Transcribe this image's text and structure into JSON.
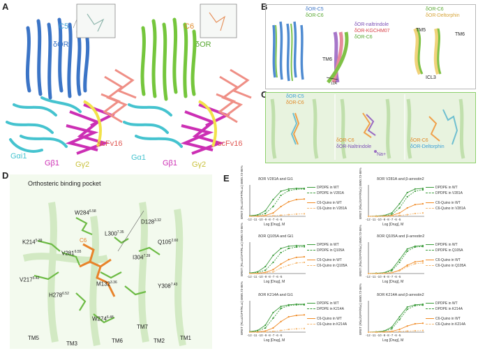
{
  "panels": {
    "A": {
      "letter": "A",
      "left": {
        "ligand": "C5",
        "receptor": "δOR",
        "galpha": "Gαi1",
        "gbeta": "Gβ1",
        "ggamma": "Gγ2",
        "scfv": "scFv16"
      },
      "right": {
        "ligand": "C6",
        "receptor": "δOR",
        "galpha": "Gα1",
        "gbeta": "Gβ1",
        "ggamma": "Gγ2",
        "scfv": "scFv16"
      }
    },
    "B": {
      "letter": "B",
      "top_left": [
        "δOR-C5",
        "δOR-C6"
      ],
      "overlay": [
        "δOR-naltrindole",
        "δOR-KGCHM07",
        "δOR-C6"
      ],
      "tm6": "TM6",
      "distance": "12Å",
      "right_legend": [
        "δOR-C6",
        "δOR-Deltorphin"
      ],
      "tm5": "TM5",
      "tm6b": "TM6",
      "icl3": "ICL3"
    },
    "C": {
      "letter": "C",
      "left_legend": [
        "δOR-C5",
        "δOR-C6"
      ],
      "mid_legend": [
        "δOR-C6",
        "δOR-Naltrindole"
      ],
      "mid_na": "Na+",
      "right_legend": [
        "δOR-C6",
        "δOR-Deltorphin"
      ]
    },
    "D": {
      "letter": "D",
      "title": "Orthosteric binding pocket",
      "ligand": "C6",
      "residues": [
        {
          "name": "W284",
          "sup": "6.58"
        },
        {
          "name": "L300",
          "sup": "7.35"
        },
        {
          "name": "D128",
          "sup": "3.32"
        },
        {
          "name": "K214",
          "sup": "5.39"
        },
        {
          "name": "V281",
          "sup": "6.55"
        },
        {
          "name": "Q105",
          "sup": "2.60"
        },
        {
          "name": "I304",
          "sup": "7.39"
        },
        {
          "name": "V217",
          "sup": "5.42"
        },
        {
          "name": "M132",
          "sup": "3.36"
        },
        {
          "name": "Y308",
          "sup": "7.43"
        },
        {
          "name": "H278",
          "sup": "6.52"
        },
        {
          "name": "W274",
          "sup": "6.48"
        }
      ],
      "helices": [
        "TM7",
        "TM5",
        "TM3",
        "TM6",
        "TM2",
        "TM1"
      ]
    },
    "E": {
      "letter": "E"
    }
  },
  "chart_data": [
    {
      "type": "line",
      "title": "δOR V281A and Gi1",
      "ylabel": "BRET (RLuc/GFP/RLuc) BW0.73-86%",
      "xlabel": "Log [Drug], M",
      "x_ticks": [
        "-12",
        "-11",
        "-10",
        "-9",
        "-8",
        "-7",
        "-6",
        "-5"
      ],
      "ylim": [
        0,
        1.1
      ],
      "x": [
        -12,
        -11,
        -10,
        -9,
        -8,
        -7,
        -6,
        -5
      ],
      "series": [
        {
          "name": "DPDPE in WT",
          "values": [
            0.02,
            0.05,
            0.2,
            0.6,
            0.9,
            0.98,
            1.0,
            1.0
          ]
        },
        {
          "name": "DPDPE in V281A",
          "values": [
            0.01,
            0.03,
            0.1,
            0.35,
            0.75,
            0.92,
            0.97,
            0.98
          ]
        },
        {
          "name": "C6-Quino in WT",
          "values": [
            0.0,
            0.01,
            0.03,
            0.12,
            0.35,
            0.52,
            0.6,
            0.62
          ]
        },
        {
          "name": "C6-Quino in V281A",
          "values": [
            0.0,
            0.0,
            0.01,
            0.02,
            0.04,
            0.06,
            0.08,
            0.09
          ]
        }
      ]
    },
    {
      "type": "line",
      "title": "δOR V281A and β-arrestin2",
      "ylabel": "BRET (Rluc/GFP/Rluc) BW0.73-86%",
      "xlabel": "Log [Drug], M",
      "x_ticks": [
        "-12",
        "-11",
        "-10",
        "-9",
        "-8",
        "-7",
        "-6",
        "-5"
      ],
      "ylim": [
        0,
        1.1
      ],
      "x": [
        -12,
        -11,
        -10,
        -9,
        -8,
        -7,
        -6,
        -5
      ],
      "series": [
        {
          "name": "DPDPE in WT",
          "values": [
            0.0,
            0.01,
            0.03,
            0.12,
            0.45,
            0.85,
            0.98,
            1.0
          ]
        },
        {
          "name": "DPDPE in V281A",
          "values": [
            0.0,
            0.0,
            0.02,
            0.06,
            0.3,
            0.7,
            0.9,
            0.95
          ]
        },
        {
          "name": "C6-Quino in WT",
          "values": [
            0.0,
            0.0,
            0.01,
            0.03,
            0.12,
            0.3,
            0.42,
            0.45
          ]
        },
        {
          "name": "C6-Quino in V281A",
          "values": [
            0.0,
            0.0,
            0.0,
            0.01,
            0.03,
            0.06,
            0.1,
            0.12
          ]
        }
      ]
    },
    {
      "type": "line",
      "title": "δOR Q105A and Gi1",
      "ylabel": "BRET (RLuc/GFP/RLuc) BW0.73-86%",
      "xlabel": "Log [Drug], M",
      "x_ticks": [
        "-12",
        "-11",
        "-10",
        "-9",
        "-8",
        "-7",
        "-6",
        "-5"
      ],
      "ylim": [
        0,
        1.1
      ],
      "x": [
        -12,
        -11,
        -10,
        -9,
        -8,
        -7,
        -6,
        -5
      ],
      "series": [
        {
          "name": "DPDPE in WT",
          "values": [
            0.02,
            0.06,
            0.25,
            0.65,
            0.9,
            0.98,
            1.0,
            1.0
          ]
        },
        {
          "name": "DPDPE in Q105A",
          "values": [
            0.01,
            0.03,
            0.12,
            0.4,
            0.75,
            0.9,
            0.95,
            0.96
          ]
        },
        {
          "name": "C6-Quino in WT",
          "values": [
            0.0,
            0.01,
            0.04,
            0.14,
            0.34,
            0.5,
            0.58,
            0.6
          ]
        },
        {
          "name": "C6-Quino in Q105A",
          "values": [
            0.0,
            0.0,
            0.02,
            0.06,
            0.2,
            0.3,
            0.38,
            0.4
          ]
        }
      ]
    },
    {
      "type": "line",
      "title": "δOR Q105A and β-arrestin2",
      "ylabel": "BRET (Rluc/GFP/Rluc) BW0.73-86%",
      "xlabel": "Log [Drug], M",
      "x_ticks": [
        "-12",
        "-11",
        "-10",
        "-9",
        "-8",
        "-7",
        "-6",
        "-5"
      ],
      "ylim": [
        0,
        1.1
      ],
      "x": [
        -12,
        -11,
        -10,
        -9,
        -8,
        -7,
        -6,
        -5
      ],
      "series": [
        {
          "name": "DPDPE in WT",
          "values": [
            0.0,
            0.01,
            0.03,
            0.14,
            0.5,
            0.88,
            0.98,
            1.0
          ]
        },
        {
          "name": "DPDPE in Q105A",
          "values": [
            0.0,
            0.01,
            0.02,
            0.1,
            0.4,
            0.8,
            0.95,
            0.97
          ]
        },
        {
          "name": "C6-Quino in WT",
          "values": [
            0.0,
            0.0,
            0.01,
            0.03,
            0.12,
            0.3,
            0.42,
            0.45
          ]
        },
        {
          "name": "C6-Quino in Q105A",
          "values": [
            0.0,
            0.0,
            0.01,
            0.02,
            0.1,
            0.25,
            0.35,
            0.38
          ]
        }
      ]
    },
    {
      "type": "line",
      "title": "δOR K214A and Gi1",
      "ylabel": "BRET (RLuc/GFP/RLuc) BW0.73-86%",
      "xlabel": "Log [Drug], M",
      "x_ticks": [
        "-12",
        "-11",
        "-10",
        "-9",
        "-8",
        "-7",
        "-6",
        "-5"
      ],
      "ylim": [
        0,
        1.1
      ],
      "x": [
        -12,
        -11,
        -10,
        -9,
        -8,
        -7,
        -6,
        -5
      ],
      "series": [
        {
          "name": "DPDPE in WT",
          "values": [
            0.02,
            0.06,
            0.25,
            0.7,
            0.92,
            0.98,
            1.0,
            1.0
          ]
        },
        {
          "name": "DPDPE in K214A",
          "values": [
            0.01,
            0.04,
            0.15,
            0.5,
            0.85,
            0.95,
            0.98,
            0.98
          ]
        },
        {
          "name": "C6-Quino in WT",
          "values": [
            0.0,
            0.01,
            0.04,
            0.15,
            0.38,
            0.55,
            0.6,
            0.62
          ]
        },
        {
          "name": "C6-Quino in K214A",
          "values": [
            0.0,
            0.0,
            0.01,
            0.03,
            0.06,
            0.1,
            0.12,
            0.13
          ]
        }
      ]
    },
    {
      "type": "line",
      "title": "δOR K214A and β-arrestin2",
      "ylabel": "BRET (Rluc/GFP/Rluc) BW0.73-86%",
      "xlabel": "Log [Drug], M",
      "x_ticks": [
        "-12",
        "-11",
        "-10",
        "-9",
        "-8",
        "-7",
        "-6",
        "-5"
      ],
      "ylim": [
        0,
        1.1
      ],
      "x": [
        -12,
        -11,
        -10,
        -9,
        -8,
        -7,
        -6,
        -5
      ],
      "series": [
        {
          "name": "DPDPE in WT",
          "values": [
            0.0,
            0.01,
            0.04,
            0.18,
            0.55,
            0.9,
            0.98,
            1.0
          ]
        },
        {
          "name": "DPDPE in K214A",
          "values": [
            0.0,
            0.01,
            0.03,
            0.12,
            0.45,
            0.82,
            0.95,
            0.97
          ]
        },
        {
          "name": "C6-Quino in WT",
          "values": [
            0.0,
            0.0,
            0.01,
            0.03,
            0.1,
            0.22,
            0.3,
            0.32
          ]
        },
        {
          "name": "C6-Quino in K214A",
          "values": [
            0.0,
            0.0,
            0.0,
            0.01,
            0.02,
            0.04,
            0.05,
            0.06
          ]
        }
      ]
    }
  ]
}
